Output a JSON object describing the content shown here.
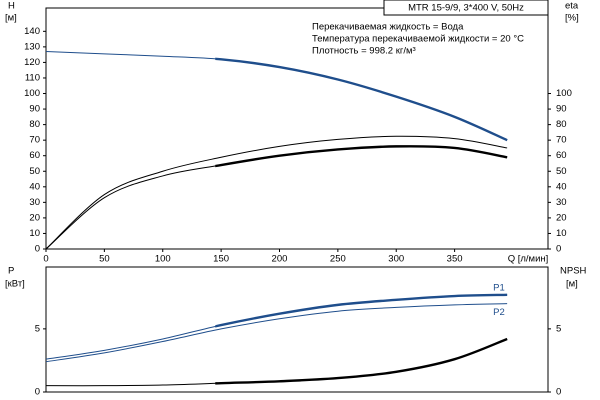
{
  "chart_data": [
    {
      "type": "line",
      "model": "MTR 15-9/9, 3*400 V, 50Hz",
      "notes": [
        "Перекачиваемая жидкость = Вода",
        "Температура перекачиваемой жидкости = 20 °C",
        "Плотность = 998.2 кг/м³"
      ],
      "ylabel": "H",
      "yunit": "[м]",
      "y2label": "eta",
      "y2unit": "[%]",
      "xlabel": "Q [л/мин]",
      "x": [
        0,
        50,
        100,
        150,
        200,
        250,
        300,
        350,
        395
      ],
      "xlim": [
        0,
        430
      ],
      "xticks": [
        0,
        50,
        100,
        150,
        200,
        250,
        300,
        350
      ],
      "ylim": [
        0,
        155
      ],
      "yticks": [
        0,
        10,
        20,
        30,
        40,
        50,
        60,
        70,
        80,
        90,
        100,
        110,
        120,
        130,
        140
      ],
      "y2lim": [
        0,
        155
      ],
      "y2ticks": [
        0,
        10,
        20,
        30,
        40,
        50,
        60,
        70,
        80,
        90,
        100
      ],
      "series": [
        {
          "color": "#1f4e8c",
          "values": [
            127,
            125.5,
            124,
            122,
            117,
            109,
            98,
            85,
            70
          ],
          "thick_from": 145
        },
        {
          "color": "#000000",
          "values": [
            0,
            35,
            50,
            59,
            66,
            70.5,
            72.5,
            71,
            65
          ],
          "axis": "y2"
        },
        {
          "color": "#000000",
          "values": [
            0,
            33,
            47,
            54,
            60,
            64,
            66,
            65,
            59
          ],
          "axis": "y2",
          "thick_from": 145
        }
      ]
    },
    {
      "type": "line",
      "ylabel": "P",
      "yunit": "[кВт]",
      "y2label": "NPSH",
      "y2unit": "[м]",
      "x": [
        0,
        50,
        100,
        150,
        200,
        250,
        300,
        350,
        395
      ],
      "xlim": [
        0,
        430
      ],
      "ylim": [
        0,
        9.9
      ],
      "yticks": [
        0,
        5
      ],
      "y2lim": [
        0,
        9.9
      ],
      "y2ticks": [
        0,
        5
      ],
      "series": [
        {
          "name": "P1",
          "color": "#1f4e8c",
          "values": [
            2.6,
            3.3,
            4.2,
            5.3,
            6.2,
            6.9,
            7.3,
            7.6,
            7.7
          ],
          "thick_from": 145
        },
        {
          "name": "P2",
          "color": "#1f4e8c",
          "values": [
            2.4,
            3.1,
            4.0,
            5.0,
            5.8,
            6.4,
            6.7,
            6.9,
            7.0
          ]
        },
        {
          "color": "#000000",
          "values": [
            0.5,
            0.5,
            0.55,
            0.7,
            0.85,
            1.1,
            1.6,
            2.6,
            4.2
          ],
          "axis": "y2",
          "thick_from": 145
        }
      ]
    }
  ]
}
